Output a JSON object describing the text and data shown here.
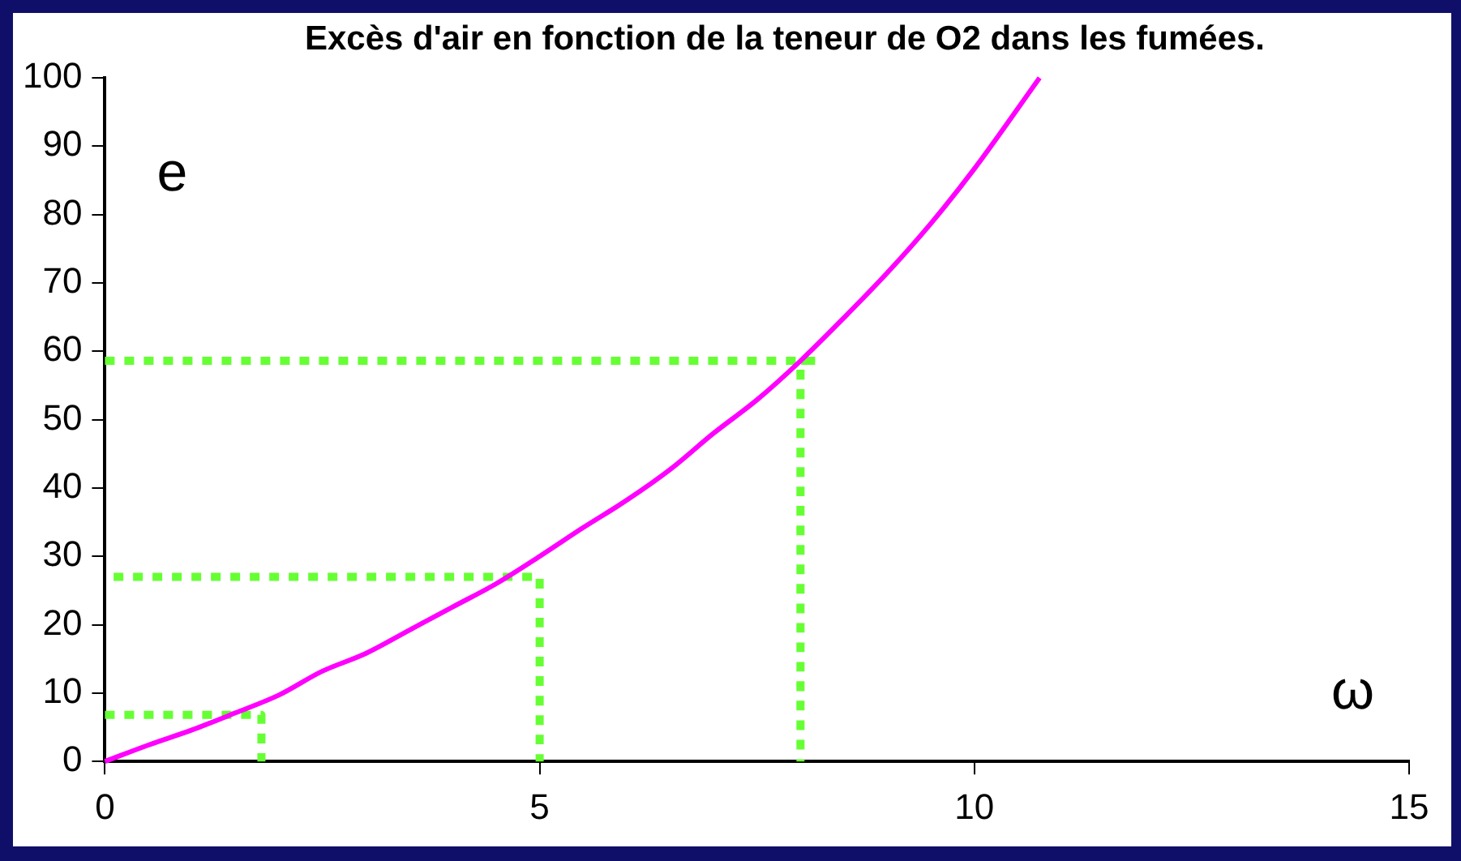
{
  "chart_data": {
    "type": "line",
    "title": "Excès d'air en fonction de la teneur de O2 dans les fumées.",
    "xlabel": "ω",
    "ylabel": "e",
    "xlim": [
      0,
      15
    ],
    "ylim": [
      0,
      100
    ],
    "xticks": [
      0,
      5,
      10,
      15
    ],
    "yticks": [
      0,
      10,
      20,
      30,
      40,
      50,
      60,
      70,
      80,
      90,
      100
    ],
    "grid": false,
    "legend": false,
    "series": [
      {
        "color": "#ff00ff",
        "marker": "none",
        "line_style": "solid",
        "x": [
          0,
          0.5,
          1,
          1.5,
          2,
          2.5,
          3,
          3.5,
          4,
          4.5,
          5,
          5.5,
          6,
          6.5,
          7,
          7.5,
          8,
          8.5,
          9,
          9.5,
          10,
          10.75
        ],
        "values": [
          0,
          2.4,
          4.6,
          7.1,
          9.7,
          13.2,
          15.8,
          19.2,
          22.6,
          26,
          30,
          34.2,
          38.2,
          42.7,
          48,
          52.9,
          58.6,
          64.9,
          71.5,
          78.7,
          86.7,
          100
        ]
      },
      {
        "color": "#66ff33",
        "marker": "none",
        "line_style": "dotted",
        "x": [
          0,
          8.2,
          8,
          8
        ],
        "values": [
          58.6,
          58.6,
          58.6,
          0
        ]
      },
      {
        "color": "#66ff33",
        "marker": "none",
        "line_style": "dotted",
        "x": [
          0.1,
          5,
          5,
          5
        ],
        "values": [
          27,
          27,
          27,
          0
        ]
      },
      {
        "color": "#66ff33",
        "marker": "none",
        "line_style": "dotted",
        "x": [
          0,
          1.8,
          1.8,
          1.8
        ],
        "values": [
          6.8,
          6.8,
          6.8,
          0
        ]
      }
    ]
  }
}
